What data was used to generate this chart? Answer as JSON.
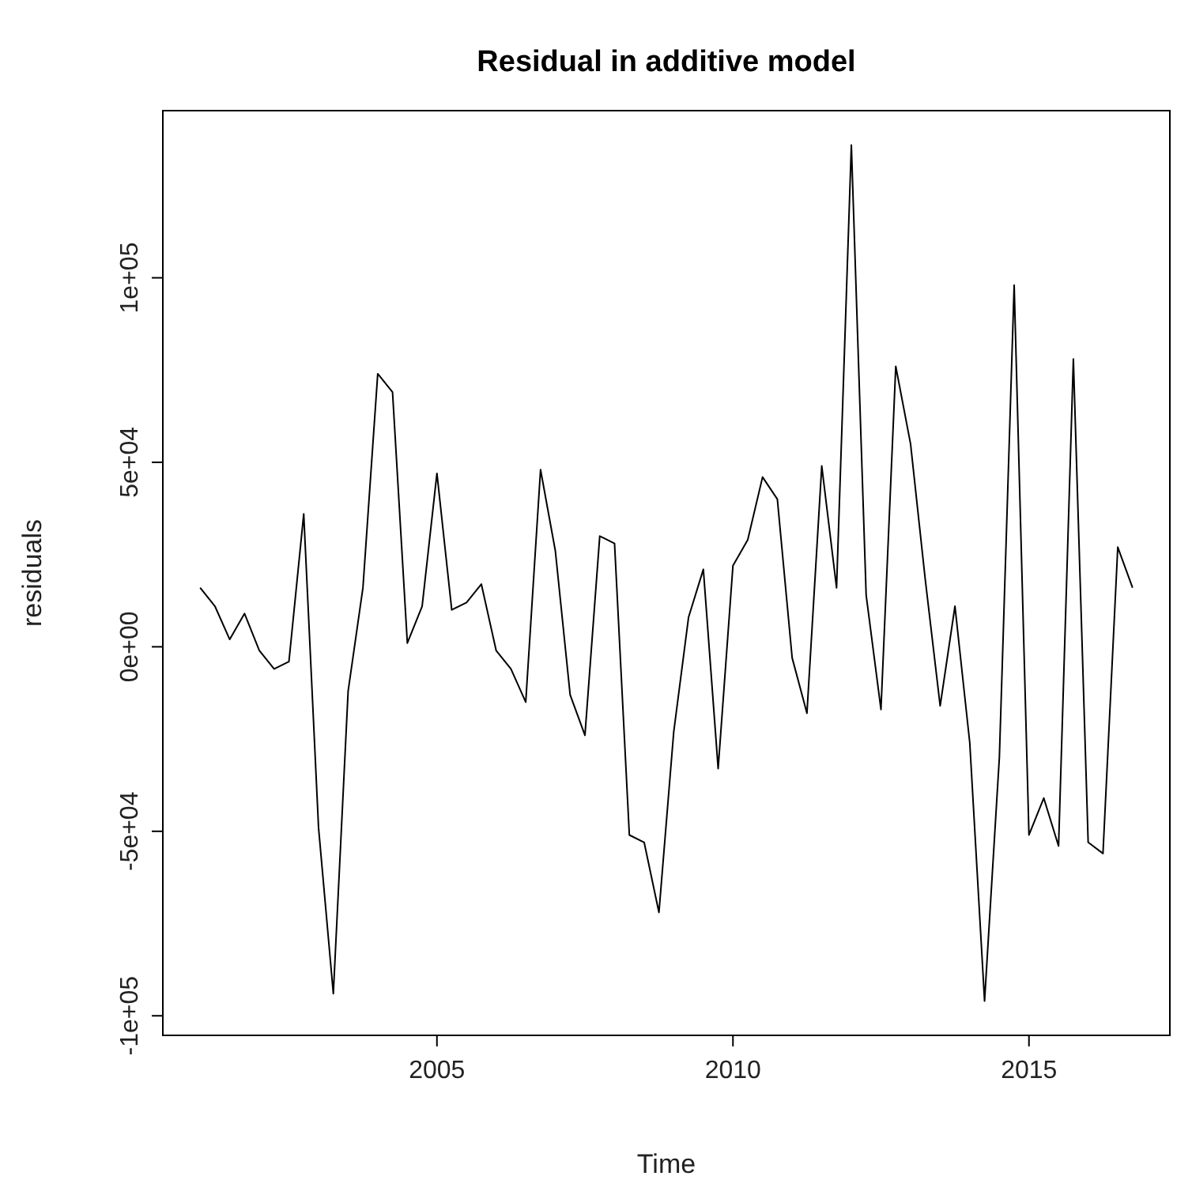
{
  "chart_data": {
    "type": "line",
    "title": "Residual in additive model",
    "xlabel": "Time",
    "ylabel": "residuals",
    "x": [
      2001,
      2001.25,
      2001.5,
      2001.75,
      2002,
      2002.25,
      2002.5,
      2002.75,
      2003,
      2003.25,
      2003.5,
      2003.75,
      2004,
      2004.25,
      2004.5,
      2004.75,
      2005,
      2005.25,
      2005.5,
      2005.75,
      2006,
      2006.25,
      2006.5,
      2006.75,
      2007,
      2007.25,
      2007.5,
      2007.75,
      2008,
      2008.25,
      2008.5,
      2008.75,
      2009,
      2009.25,
      2009.5,
      2009.75,
      2010,
      2010.25,
      2010.5,
      2010.75,
      2011,
      2011.25,
      2011.5,
      2011.75,
      2012,
      2012.25,
      2012.5,
      2012.75,
      2013,
      2013.25,
      2013.5,
      2013.75,
      2014,
      2014.25,
      2014.5,
      2014.75,
      2015,
      2015.25,
      2015.5,
      2015.75,
      2016,
      2016.25,
      2016.5,
      2016.75
    ],
    "series": [
      {
        "color": "#000000",
        "values": [
          16000,
          11000,
          2000,
          9000,
          -1000,
          -6000,
          -4000,
          36000,
          -49000,
          -94000,
          -12000,
          16000,
          74000,
          69000,
          1000,
          11000,
          47000,
          10000,
          12000,
          17000,
          -1000,
          -6000,
          -15000,
          48000,
          26000,
          -13000,
          -24000,
          30000,
          28000,
          -51000,
          -53000,
          -72000,
          -23000,
          8000,
          21000,
          -33000,
          22000,
          29000,
          46000,
          40000,
          -3000,
          -18000,
          49000,
          16000,
          136000,
          14000,
          -17000,
          76000,
          55000,
          18000,
          -16000,
          11000,
          -26000,
          -96000,
          -30000,
          98000,
          -51000,
          -41000,
          -54000,
          78000,
          -53000,
          -56000,
          27000,
          16000
        ]
      }
    ],
    "xlim": [
      2000.37,
      2017.38
    ],
    "xticks": [
      2005,
      2010,
      2015
    ],
    "ylim": [
      -105300,
      145300
    ],
    "yticks": [
      {
        "value": -100000,
        "label": "-1e+05"
      },
      {
        "value": -50000,
        "label": "-5e+04"
      },
      {
        "value": 0,
        "label": "0e+00"
      },
      {
        "value": 50000,
        "label": "5e+04"
      },
      {
        "value": 100000,
        "label": "1e+05"
      }
    ],
    "grid": false,
    "marker": "none",
    "line_style": "solid"
  }
}
